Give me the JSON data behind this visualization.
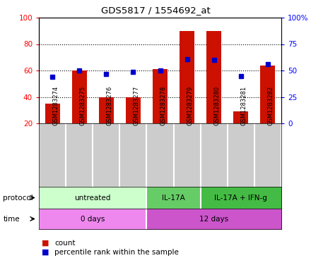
{
  "title": "GDS5817 / 1554692_at",
  "samples": [
    "GSM1283274",
    "GSM1283275",
    "GSM1283276",
    "GSM1283277",
    "GSM1283278",
    "GSM1283279",
    "GSM1283280",
    "GSM1283281",
    "GSM1283282"
  ],
  "counts": [
    35,
    60,
    40,
    40,
    61,
    90,
    90,
    29,
    64
  ],
  "percentile_ranks": [
    44,
    50,
    47,
    49,
    50,
    61,
    60,
    45,
    56
  ],
  "ylim_left": [
    20,
    100
  ],
  "ylim_right": [
    0,
    100
  ],
  "yticks_left": [
    20,
    40,
    60,
    80,
    100
  ],
  "yticks_right": [
    0,
    25,
    50,
    75,
    100
  ],
  "ytick_labels_right": [
    "0",
    "25",
    "50",
    "75",
    "100%"
  ],
  "bar_color": "#cc1100",
  "dot_color": "#0000cc",
  "bar_bottom": 20,
  "protocol_groups": [
    {
      "label": "untreated",
      "start": 0,
      "end": 4,
      "color": "#ccffcc"
    },
    {
      "label": "IL-17A",
      "start": 4,
      "end": 6,
      "color": "#66cc66"
    },
    {
      "label": "IL-17A + IFN-g",
      "start": 6,
      "end": 9,
      "color": "#44bb44"
    }
  ],
  "time_groups": [
    {
      "label": "0 days",
      "start": 0,
      "end": 4,
      "color": "#ee88ee"
    },
    {
      "label": "12 days",
      "start": 4,
      "end": 9,
      "color": "#cc55cc"
    }
  ],
  "protocol_label": "protocol",
  "time_label": "time",
  "legend_count_label": "count",
  "legend_percentile_label": "percentile rank within the sample",
  "sample_bg_color": "#cccccc",
  "fig_width": 4.4,
  "fig_height": 3.93,
  "dpi": 100
}
